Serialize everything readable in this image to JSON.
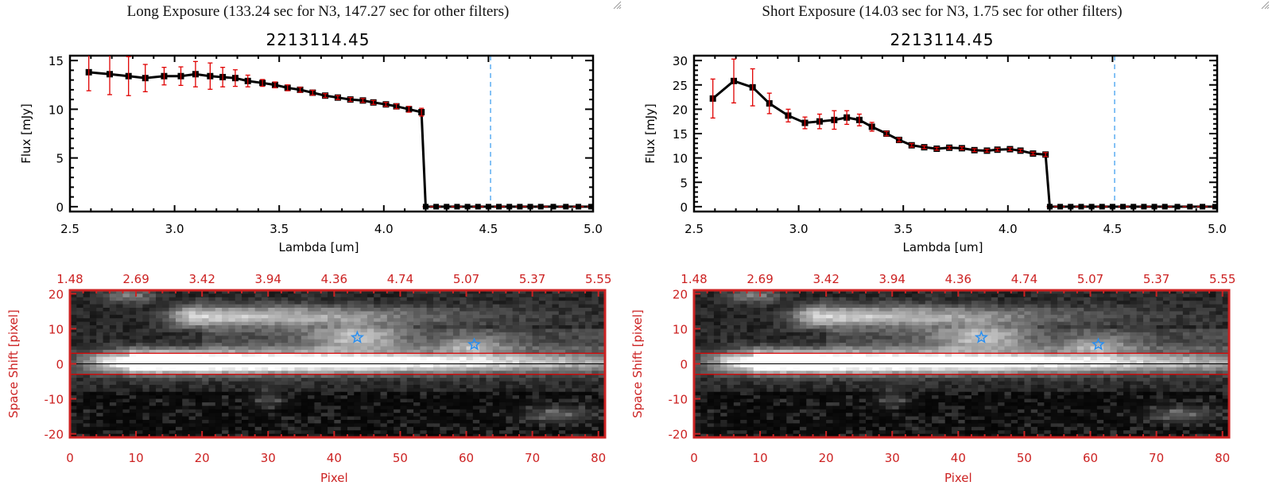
{
  "panels": [
    {
      "exposure_title": "Long Exposure (133.24 sec for N3, 147.27 sec for other filters)",
      "object_title": "2213114.45",
      "spectrum": {
        "type": "line",
        "xlabel": "Lambda [um]",
        "ylabel": "Flux [mJy]",
        "xlim": [
          2.5,
          5.0
        ],
        "ylim": [
          -0.5,
          15.5
        ],
        "xticks": [
          2.5,
          3.0,
          3.5,
          4.0,
          4.5,
          5.0
        ],
        "xtick_labels": [
          "2.5",
          "3.0",
          "3.5",
          "4.0",
          "4.5",
          "5.0"
        ],
        "yticks": [
          0,
          5,
          10,
          15
        ],
        "ytick_labels": [
          "0",
          "5",
          "10",
          "15"
        ],
        "vline_x": 4.51,
        "hline_y": 0,
        "x": [
          2.59,
          2.69,
          2.78,
          2.86,
          2.95,
          3.03,
          3.1,
          3.17,
          3.23,
          3.29,
          3.35,
          3.42,
          3.48,
          3.54,
          3.6,
          3.66,
          3.72,
          3.78,
          3.84,
          3.9,
          3.95,
          4.01,
          4.06,
          4.12,
          4.18,
          4.2,
          4.25,
          4.3,
          4.35,
          4.4,
          4.45,
          4.5,
          4.55,
          4.6,
          4.65,
          4.7,
          4.75,
          4.81,
          4.87,
          4.93,
          4.99
        ],
        "y": [
          13.8,
          13.6,
          13.4,
          13.2,
          13.4,
          13.4,
          13.6,
          13.4,
          13.3,
          13.2,
          12.9,
          12.7,
          12.5,
          12.2,
          12.0,
          11.7,
          11.4,
          11.2,
          11.0,
          10.9,
          10.7,
          10.5,
          10.3,
          10.0,
          9.7,
          0,
          0,
          0,
          0,
          0,
          0,
          0,
          0,
          0,
          0,
          0,
          0,
          0,
          0,
          0,
          0
        ],
        "yerr": [
          1.9,
          2.1,
          2.0,
          1.4,
          0.9,
          0.95,
          1.3,
          1.35,
          1.0,
          0.85,
          0.6,
          0.35,
          0.3,
          0.3,
          0.25,
          0.25,
          0.2,
          0.2,
          0.2,
          0.2,
          0.2,
          0.2,
          0.25,
          0.3,
          0.4,
          0,
          0,
          0,
          0,
          0,
          0,
          0,
          0,
          0,
          0,
          0,
          0,
          0,
          0,
          0,
          0
        ]
      },
      "image": {
        "type": "heatmap",
        "xlabel": "Pixel",
        "ylabel": "Space Shift [pixel]",
        "xlim": [
          0,
          81
        ],
        "ylim": [
          -21,
          21
        ],
        "xticks": [
          0,
          10,
          20,
          30,
          40,
          50,
          60,
          70,
          80
        ],
        "xtick_labels": [
          "0",
          "10",
          "20",
          "30",
          "40",
          "50",
          "60",
          "70",
          "80"
        ],
        "yticks": [
          -20,
          -10,
          0,
          10,
          20
        ],
        "ytick_labels": [
          "-20",
          "-10",
          "0",
          "10",
          "20"
        ],
        "top_tick_labels": [
          "1.48",
          "2.69",
          "3.42",
          "3.94",
          "4.36",
          "4.74",
          "5.07",
          "5.37",
          "5.55"
        ],
        "aperture_lines": [
          3,
          -3
        ],
        "center_line": 0,
        "markers": [
          {
            "x": 43.5,
            "y": 7.5
          },
          {
            "x": 61.2,
            "y": 5.5
          }
        ]
      }
    },
    {
      "exposure_title": "Short Exposure (14.03 sec for N3, 1.75 sec for other filters)",
      "object_title": "2213114.45",
      "spectrum": {
        "type": "line",
        "xlabel": "Lambda [um]",
        "ylabel": "Flux [mJy]",
        "xlim": [
          2.5,
          5.0
        ],
        "ylim": [
          -1,
          31
        ],
        "xticks": [
          2.5,
          3.0,
          3.5,
          4.0,
          4.5,
          5.0
        ],
        "xtick_labels": [
          "2.5",
          "3.0",
          "3.5",
          "4.0",
          "4.5",
          "5.0"
        ],
        "yticks": [
          0,
          5,
          10,
          15,
          20,
          25,
          30
        ],
        "ytick_labels": [
          "0",
          "5",
          "10",
          "15",
          "20",
          "25",
          "30"
        ],
        "vline_x": 4.51,
        "hline_y": 0,
        "x": [
          2.59,
          2.69,
          2.78,
          2.86,
          2.95,
          3.03,
          3.1,
          3.17,
          3.23,
          3.29,
          3.35,
          3.42,
          3.48,
          3.54,
          3.6,
          3.66,
          3.72,
          3.78,
          3.84,
          3.9,
          3.95,
          4.01,
          4.06,
          4.12,
          4.18,
          4.2,
          4.25,
          4.3,
          4.35,
          4.4,
          4.45,
          4.5,
          4.55,
          4.6,
          4.65,
          4.7,
          4.75,
          4.81,
          4.87,
          4.93,
          4.99
        ],
        "y": [
          22.2,
          25.8,
          24.5,
          21.2,
          18.7,
          17.2,
          17.5,
          17.8,
          18.3,
          17.8,
          16.4,
          15.0,
          13.7,
          12.6,
          12.2,
          11.9,
          12.1,
          12.0,
          11.6,
          11.5,
          11.7,
          11.8,
          11.5,
          10.9,
          10.7,
          0,
          0,
          0,
          0,
          0,
          0,
          0,
          0,
          0,
          0,
          0,
          0,
          0,
          0,
          0,
          0
        ],
        "yerr": [
          4.0,
          4.5,
          3.8,
          2.1,
          1.3,
          1.2,
          1.5,
          1.9,
          1.4,
          1.2,
          0.9,
          0.45,
          0.4,
          0.35,
          0.3,
          0.3,
          0.3,
          0.3,
          0.3,
          0.3,
          0.3,
          0.3,
          0.3,
          0.3,
          0.4,
          0,
          0,
          0,
          0,
          0,
          0,
          0,
          0,
          0,
          0,
          0,
          0,
          0,
          0,
          0,
          0
        ]
      },
      "image": {
        "type": "heatmap",
        "xlabel": "Pixel",
        "ylabel": "Space Shift [pixel]",
        "xlim": [
          0,
          81
        ],
        "ylim": [
          -21,
          21
        ],
        "xticks": [
          0,
          10,
          20,
          30,
          40,
          50,
          60,
          70,
          80
        ],
        "xtick_labels": [
          "0",
          "10",
          "20",
          "30",
          "40",
          "50",
          "60",
          "70",
          "80"
        ],
        "yticks": [
          -20,
          -10,
          0,
          10,
          20
        ],
        "ytick_labels": [
          "-20",
          "-10",
          "0",
          "10",
          "20"
        ],
        "top_tick_labels": [
          "1.48",
          "2.69",
          "3.42",
          "3.94",
          "4.36",
          "4.74",
          "5.07",
          "5.37",
          "5.55"
        ],
        "aperture_lines": [
          3,
          -3
        ],
        "center_line": 0,
        "markers": [
          {
            "x": 43.5,
            "y": 7.5
          },
          {
            "x": 61.2,
            "y": 5.5
          }
        ]
      }
    }
  ],
  "colors": {
    "axis_black": "#000000",
    "errorbar_red": "#e00000",
    "image_axis_red": "#cc2222",
    "vline_blue": "#3399ee",
    "marker_blue": "#2a8ff0",
    "hline_red": "#dd0000"
  },
  "chart_data": [
    {
      "type": "line",
      "title": "2213114.45",
      "subtitle": "Long Exposure (133.24 sec for N3, 147.27 sec for other filters)",
      "xlabel": "Lambda [um]",
      "ylabel": "Flux [mJy]",
      "xlim": [
        2.5,
        5.0
      ],
      "ylim": [
        0,
        15
      ],
      "series": [
        {
          "name": "flux",
          "x": [
            2.59,
            2.69,
            2.78,
            2.86,
            2.95,
            3.03,
            3.1,
            3.17,
            3.23,
            3.29,
            3.35,
            3.42,
            3.48,
            3.54,
            3.6,
            3.66,
            3.72,
            3.78,
            3.84,
            3.9,
            3.95,
            4.01,
            4.06,
            4.12,
            4.18
          ],
          "values": [
            13.8,
            13.6,
            13.4,
            13.2,
            13.4,
            13.4,
            13.6,
            13.4,
            13.3,
            13.2,
            12.9,
            12.7,
            12.5,
            12.2,
            12.0,
            11.7,
            11.4,
            11.2,
            11.0,
            10.9,
            10.7,
            10.5,
            10.3,
            10.0,
            9.7
          ]
        }
      ]
    },
    {
      "type": "line",
      "title": "2213114.45",
      "subtitle": "Short Exposure (14.03 sec for N3, 1.75 sec for other filters)",
      "xlabel": "Lambda [um]",
      "ylabel": "Flux [mJy]",
      "xlim": [
        2.5,
        5.0
      ],
      "ylim": [
        0,
        30
      ],
      "series": [
        {
          "name": "flux",
          "x": [
            2.59,
            2.69,
            2.78,
            2.86,
            2.95,
            3.03,
            3.1,
            3.17,
            3.23,
            3.29,
            3.35,
            3.42,
            3.48,
            3.54,
            3.6,
            3.66,
            3.72,
            3.78,
            3.84,
            3.9,
            3.95,
            4.01,
            4.06,
            4.12,
            4.18
          ],
          "values": [
            22.2,
            25.8,
            24.5,
            21.2,
            18.7,
            17.2,
            17.5,
            17.8,
            18.3,
            17.8,
            16.4,
            15.0,
            13.7,
            12.6,
            12.2,
            11.9,
            12.1,
            12.0,
            11.6,
            11.5,
            11.7,
            11.8,
            11.5,
            10.9,
            10.7
          ]
        }
      ]
    }
  ]
}
